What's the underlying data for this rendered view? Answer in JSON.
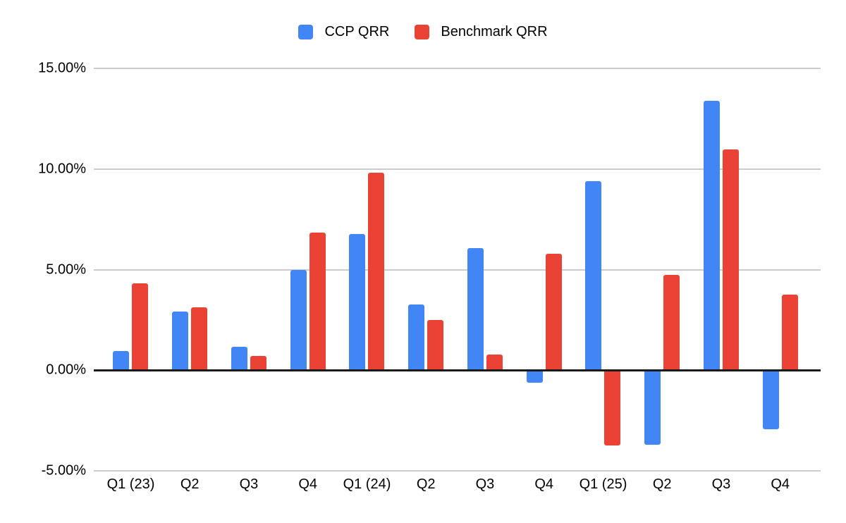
{
  "chart_data": {
    "type": "bar",
    "title": "",
    "xlabel": "",
    "ylabel": "",
    "categories": [
      "Q1 (23)",
      "Q2",
      "Q3",
      "Q4",
      "Q1 (24)",
      "Q2",
      "Q3",
      "Q4",
      "Q1 (25)",
      "Q2",
      "Q3",
      "Q4"
    ],
    "series": [
      {
        "name": "CCP QRR",
        "color": "#4285F4",
        "values": [
          0.97,
          2.92,
          1.17,
          5.0,
          6.76,
          3.28,
          6.06,
          -0.6,
          9.41,
          -3.68,
          13.38,
          -2.9
        ]
      },
      {
        "name": "Benchmark QRR",
        "color": "#EA4335",
        "values": [
          4.33,
          3.12,
          0.7,
          6.83,
          9.82,
          2.51,
          0.78,
          5.78,
          -3.7,
          4.75,
          10.96,
          3.77
        ]
      }
    ],
    "value_suffix": "%",
    "ylim": [
      -5,
      15
    ],
    "y_ticks": [
      {
        "value": 15,
        "label": "15.00%"
      },
      {
        "value": 10,
        "label": "10.00%"
      },
      {
        "value": 5,
        "label": "5.00%"
      },
      {
        "value": 0,
        "label": "0.00%"
      },
      {
        "value": -5,
        "label": "-5.00%"
      }
    ],
    "grid": "horizontal",
    "legend_position": "top",
    "background_color": "#ffffff",
    "gridline_color": "#cccccc",
    "zero_line_color": "#1a1a1a",
    "text_color": "#000000"
  }
}
